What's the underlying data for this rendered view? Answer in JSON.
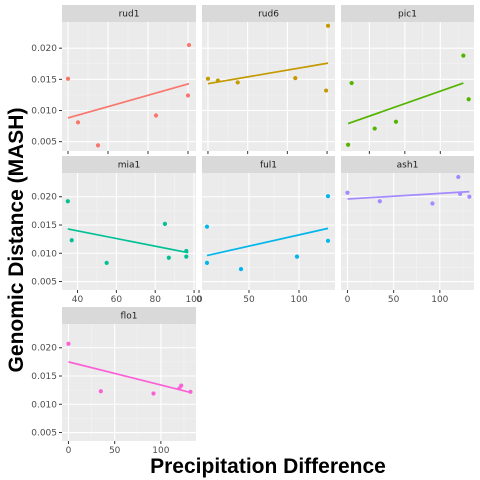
{
  "chart_data": {
    "type": "scatter",
    "facet_layout": "wrap",
    "xlabel": "Precipitation Difference",
    "ylabel": "Genomic Distance (MASH)",
    "ylim": [
      0.0035,
      0.0242
    ],
    "y_ticks": [
      0.005,
      0.01,
      0.015,
      0.02
    ],
    "y_tick_labels": [
      "0.005",
      "0.010",
      "0.015",
      "0.020"
    ],
    "background": "#ebebeb",
    "strip_color": "#d9d9d9",
    "grid": true,
    "legend": "none",
    "panels": [
      {
        "name": "rud1",
        "color": "#F8766D",
        "xlim": [
          -6,
          128
        ],
        "x_ticks": [
          0,
          40,
          80,
          120
        ],
        "x": [
          0,
          10,
          30,
          88,
          120,
          121
        ],
        "y": [
          0.0151,
          0.0081,
          0.0044,
          0.0092,
          0.0124,
          0.0205
        ],
        "fit": [
          [
            0,
            0.0088
          ],
          [
            121,
            0.0143
          ]
        ]
      },
      {
        "name": "rud6",
        "color": "#C49A00",
        "xlim": [
          -6,
          128
        ],
        "x_ticks": [
          0,
          40,
          80,
          120
        ],
        "x": [
          0,
          10,
          30,
          88,
          119,
          121
        ],
        "y": [
          0.0151,
          0.0148,
          0.0145,
          0.0152,
          0.0132,
          0.0236
        ],
        "fit": [
          [
            0,
            0.0143
          ],
          [
            121,
            0.0176
          ]
        ]
      },
      {
        "name": "pic1",
        "color": "#53B400",
        "xlim": [
          24,
          99
        ],
        "x_ticks": [
          40,
          60,
          80
        ],
        "x": [
          28,
          30,
          43,
          55,
          93,
          96
        ],
        "y": [
          0.0045,
          0.0144,
          0.0071,
          0.0082,
          0.0188,
          0.0118
        ],
        "fit": [
          [
            28,
            0.0079
          ],
          [
            93,
            0.0144
          ]
        ]
      },
      {
        "name": "mia1",
        "color": "#00C094",
        "xlim": [
          32,
          101
        ],
        "x_ticks": [
          40,
          60,
          80,
          100
        ],
        "x": [
          35,
          37,
          55,
          85,
          87,
          96,
          96
        ],
        "y": [
          0.0192,
          0.0123,
          0.0083,
          0.0152,
          0.0092,
          0.0094,
          0.0104
        ],
        "fit": [
          [
            35,
            0.0143
          ],
          [
            97,
            0.0101
          ]
        ]
      },
      {
        "name": "ful1",
        "color": "#00B6EB",
        "xlim": [
          3,
          136
        ],
        "x_ticks": [
          0,
          50,
          100
        ],
        "x": [
          8,
          8,
          42,
          98,
          129,
          129
        ],
        "y": [
          0.0147,
          0.0083,
          0.0072,
          0.0094,
          0.0122,
          0.0201
        ],
        "fit": [
          [
            8,
            0.0096
          ],
          [
            129,
            0.0144
          ]
        ]
      },
      {
        "name": "ash1",
        "color": "#A58AFF",
        "xlim": [
          -7,
          137
        ],
        "x_ticks": [
          0,
          50,
          100
        ],
        "x": [
          0,
          35,
          92,
          120,
          122,
          132
        ],
        "y": [
          0.0207,
          0.0192,
          0.0188,
          0.0235,
          0.0205,
          0.02
        ],
        "fit": [
          [
            0,
            0.0196
          ],
          [
            132,
            0.0209
          ]
        ]
      },
      {
        "name": "flo1",
        "color": "#FB61D7",
        "xlim": [
          -7,
          138
        ],
        "x_ticks": [
          0,
          50,
          100
        ],
        "x": [
          0,
          35,
          92,
          120,
          122,
          132
        ],
        "y": [
          0.0207,
          0.0123,
          0.0119,
          0.0128,
          0.0133,
          0.0122
        ],
        "fit": [
          [
            0,
            0.0175
          ],
          [
            132,
            0.0121
          ]
        ]
      }
    ]
  }
}
